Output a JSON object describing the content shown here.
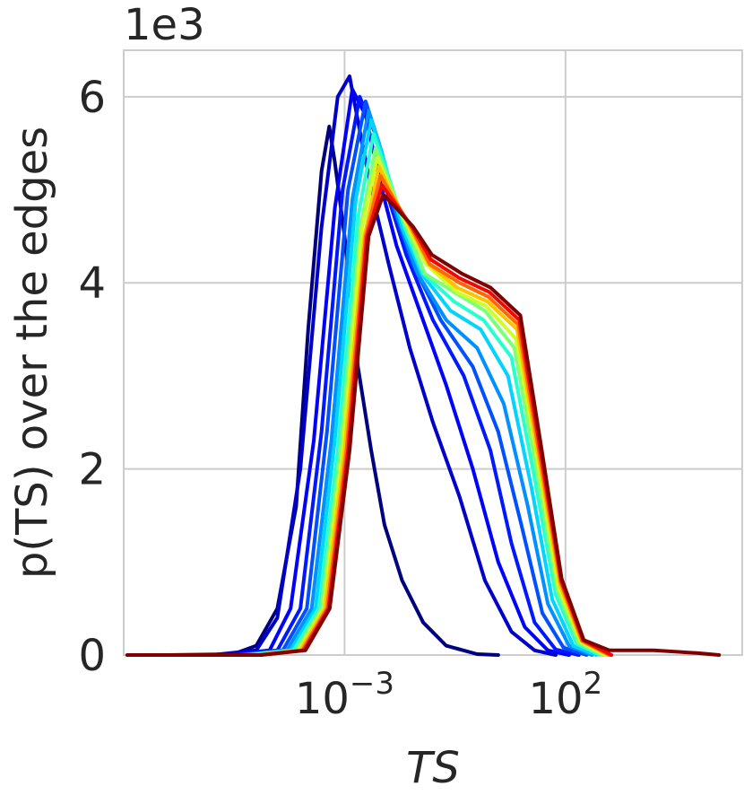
{
  "chart_data": {
    "type": "line",
    "title": "",
    "xlabel": "TS",
    "ylabel": "p(TS) over the edges",
    "y_multiplier_label": "1e3",
    "x_scale": "log",
    "xlim": [
      1e-08,
      1000000.0
    ],
    "ylim": [
      0,
      6.5
    ],
    "x_ticks": [
      {
        "value": 0.001,
        "base": "10",
        "exp": "−3"
      },
      {
        "value": 100,
        "base": "10",
        "exp": "2"
      }
    ],
    "y_ticks": [
      {
        "value": 0,
        "label": "0"
      },
      {
        "value": 2,
        "label": "2"
      },
      {
        "value": 4,
        "label": "4"
      },
      {
        "value": 6,
        "label": "6"
      }
    ],
    "grid": true,
    "legend": "none",
    "colormap": "jet",
    "series": [
      {
        "color": "#00007f",
        "points": [
          [
            1e-07,
            0
          ],
          [
            3e-06,
            0.01
          ],
          [
            1e-05,
            0.1
          ],
          [
            3e-05,
            0.5
          ],
          [
            8e-05,
            1.6
          ],
          [
            0.00015,
            3.5
          ],
          [
            0.0003,
            5.2
          ],
          [
            0.00045,
            5.68
          ],
          [
            0.0006,
            5.3
          ],
          [
            0.001,
            4.5
          ],
          [
            0.002,
            3.1
          ],
          [
            0.004,
            2.2
          ],
          [
            0.008,
            1.4
          ],
          [
            0.02,
            0.8
          ],
          [
            0.06,
            0.35
          ],
          [
            0.2,
            0.1
          ],
          [
            1,
            0.01
          ],
          [
            3,
            0
          ]
        ]
      },
      {
        "color": "#0000c8",
        "points": [
          [
            1e-06,
            0
          ],
          [
            1e-05,
            0.05
          ],
          [
            3e-05,
            0.4
          ],
          [
            0.0001,
            2.0
          ],
          [
            0.0003,
            4.6
          ],
          [
            0.0007,
            6.0
          ],
          [
            0.0013,
            6.22
          ],
          [
            0.0025,
            5.5
          ],
          [
            0.005,
            4.8
          ],
          [
            0.01,
            4.2
          ],
          [
            0.03,
            3.3
          ],
          [
            0.1,
            2.5
          ],
          [
            0.4,
            1.7
          ],
          [
            1.5,
            0.8
          ],
          [
            6,
            0.25
          ],
          [
            20,
            0.05
          ],
          [
            60,
            0
          ]
        ]
      },
      {
        "color": "#0000ff",
        "points": [
          [
            2e-06,
            0
          ],
          [
            2e-05,
            0.05
          ],
          [
            6e-05,
            0.5
          ],
          [
            0.0002,
            2.3
          ],
          [
            0.0006,
            4.8
          ],
          [
            0.0015,
            6.08
          ],
          [
            0.003,
            5.8
          ],
          [
            0.007,
            5.0
          ],
          [
            0.015,
            4.4
          ],
          [
            0.05,
            3.7
          ],
          [
            0.2,
            2.9
          ],
          [
            0.8,
            2.0
          ],
          [
            3,
            1.0
          ],
          [
            12,
            0.3
          ],
          [
            40,
            0.05
          ],
          [
            120,
            0
          ]
        ]
      },
      {
        "color": "#0018ff",
        "points": [
          [
            3e-06,
            0
          ],
          [
            3e-05,
            0.05
          ],
          [
            0.0001,
            0.5
          ],
          [
            0.0003,
            2.4
          ],
          [
            0.0009,
            5.0
          ],
          [
            0.0022,
            6.0
          ],
          [
            0.005,
            5.6
          ],
          [
            0.01,
            4.9
          ],
          [
            0.025,
            4.3
          ],
          [
            0.1,
            3.6
          ],
          [
            0.5,
            3.0
          ],
          [
            2,
            2.2
          ],
          [
            6,
            1.2
          ],
          [
            20,
            0.35
          ],
          [
            60,
            0.06
          ],
          [
            200,
            0
          ]
        ]
      },
      {
        "color": "#0050ff",
        "points": [
          [
            4e-06,
            0
          ],
          [
            4e-05,
            0.05
          ],
          [
            0.00014,
            0.5
          ],
          [
            0.0004,
            2.4
          ],
          [
            0.0012,
            5.0
          ],
          [
            0.003,
            5.95
          ],
          [
            0.006,
            5.5
          ],
          [
            0.013,
            4.8
          ],
          [
            0.035,
            4.2
          ],
          [
            0.15,
            3.6
          ],
          [
            0.8,
            3.1
          ],
          [
            3,
            2.4
          ],
          [
            10,
            1.4
          ],
          [
            30,
            0.45
          ],
          [
            90,
            0.08
          ],
          [
            300,
            0
          ]
        ]
      },
      {
        "color": "#0090ff",
        "points": [
          [
            5e-06,
            0
          ],
          [
            5e-05,
            0.05
          ],
          [
            0.00018,
            0.5
          ],
          [
            0.0005,
            2.3
          ],
          [
            0.0015,
            4.9
          ],
          [
            0.0035,
            5.85
          ],
          [
            0.007,
            5.4
          ],
          [
            0.016,
            4.7
          ],
          [
            0.045,
            4.1
          ],
          [
            0.2,
            3.6
          ],
          [
            1,
            3.3
          ],
          [
            4,
            2.7
          ],
          [
            14,
            1.6
          ],
          [
            40,
            0.55
          ],
          [
            120,
            0.1
          ],
          [
            400,
            0
          ]
        ]
      },
      {
        "color": "#00d4ff",
        "points": [
          [
            6e-06,
            0
          ],
          [
            6e-05,
            0.05
          ],
          [
            0.00022,
            0.5
          ],
          [
            0.0006,
            2.3
          ],
          [
            0.0018,
            4.9
          ],
          [
            0.004,
            5.75
          ],
          [
            0.008,
            5.3
          ],
          [
            0.02,
            4.6
          ],
          [
            0.055,
            4.1
          ],
          [
            0.25,
            3.7
          ],
          [
            1.2,
            3.5
          ],
          [
            5,
            3.0
          ],
          [
            17,
            1.8
          ],
          [
            50,
            0.6
          ],
          [
            150,
            0.1
          ],
          [
            500,
            0
          ]
        ]
      },
      {
        "color": "#29ffce",
        "points": [
          [
            7e-06,
            0
          ],
          [
            7e-05,
            0.05
          ],
          [
            0.00026,
            0.5
          ],
          [
            0.0007,
            2.2
          ],
          [
            0.002,
            4.7
          ],
          [
            0.0045,
            5.6
          ],
          [
            0.009,
            5.2
          ],
          [
            0.023,
            4.6
          ],
          [
            0.06,
            4.1
          ],
          [
            0.3,
            3.8
          ],
          [
            1.4,
            3.6
          ],
          [
            6,
            3.2
          ],
          [
            20,
            1.9
          ],
          [
            60,
            0.65
          ],
          [
            180,
            0.12
          ],
          [
            600,
            0
          ]
        ]
      },
      {
        "color": "#7dff7a",
        "points": [
          [
            8e-06,
            0
          ],
          [
            8e-05,
            0.05
          ],
          [
            0.0003,
            0.5
          ],
          [
            0.0008,
            2.2
          ],
          [
            0.0023,
            4.6
          ],
          [
            0.005,
            5.45
          ],
          [
            0.01,
            5.1
          ],
          [
            0.025,
            4.6
          ],
          [
            0.065,
            4.1
          ],
          [
            0.3,
            3.9
          ],
          [
            1.5,
            3.7
          ],
          [
            7,
            3.3
          ],
          [
            22,
            2.0
          ],
          [
            65,
            0.7
          ],
          [
            200,
            0.13
          ],
          [
            700,
            0
          ]
        ]
      },
      {
        "color": "#ceff29",
        "points": [
          [
            9e-06,
            0
          ],
          [
            9e-05,
            0.05
          ],
          [
            0.00033,
            0.5
          ],
          [
            0.0009,
            2.2
          ],
          [
            0.0025,
            4.6
          ],
          [
            0.0055,
            5.35
          ],
          [
            0.011,
            5.0
          ],
          [
            0.027,
            4.6
          ],
          [
            0.07,
            4.2
          ],
          [
            0.35,
            3.9
          ],
          [
            1.6,
            3.75
          ],
          [
            7.5,
            3.4
          ],
          [
            24,
            2.05
          ],
          [
            70,
            0.72
          ],
          [
            220,
            0.14
          ],
          [
            800,
            0
          ]
        ]
      },
      {
        "color": "#ffc400",
        "points": [
          [
            1e-05,
            0
          ],
          [
            0.0001,
            0.05
          ],
          [
            0.00036,
            0.5
          ],
          [
            0.001,
            2.2
          ],
          [
            0.0028,
            4.5
          ],
          [
            0.006,
            5.25
          ],
          [
            0.012,
            4.95
          ],
          [
            0.03,
            4.6
          ],
          [
            0.08,
            4.2
          ],
          [
            0.35,
            3.95
          ],
          [
            1.7,
            3.8
          ],
          [
            8,
            3.5
          ],
          [
            25,
            2.1
          ],
          [
            75,
            0.75
          ],
          [
            230,
            0.15
          ],
          [
            900,
            0
          ]
        ]
      },
      {
        "color": "#ff6800",
        "points": [
          [
            1.1e-05,
            0
          ],
          [
            0.00011,
            0.05
          ],
          [
            0.0004,
            0.5
          ],
          [
            0.0011,
            2.2
          ],
          [
            0.003,
            4.5
          ],
          [
            0.0065,
            5.15
          ],
          [
            0.013,
            4.9
          ],
          [
            0.032,
            4.6
          ],
          [
            0.085,
            4.2
          ],
          [
            0.4,
            4.0
          ],
          [
            1.8,
            3.85
          ],
          [
            8.5,
            3.55
          ],
          [
            26,
            2.15
          ],
          [
            78,
            0.78
          ],
          [
            240,
            0.15
          ],
          [
            1000,
            0
          ]
        ]
      },
      {
        "color": "#f10800",
        "points": [
          [
            1.2e-05,
            0
          ],
          [
            0.00012,
            0.05
          ],
          [
            0.00043,
            0.5
          ],
          [
            0.0012,
            2.2
          ],
          [
            0.0032,
            4.5
          ],
          [
            0.007,
            5.05
          ],
          [
            0.014,
            4.85
          ],
          [
            0.034,
            4.6
          ],
          [
            0.09,
            4.25
          ],
          [
            0.4,
            4.05
          ],
          [
            1.9,
            3.9
          ],
          [
            9,
            3.6
          ],
          [
            27,
            2.2
          ],
          [
            80,
            0.8
          ],
          [
            250,
            0.16
          ],
          [
            1100,
            0
          ]
        ]
      },
      {
        "color": "#7f0000",
        "points": [
          [
            1.2e-08,
            0
          ],
          [
            1e-06,
            0
          ],
          [
            1.3e-05,
            0
          ],
          [
            0.00013,
            0.05
          ],
          [
            0.00046,
            0.5
          ],
          [
            0.0013,
            2.2
          ],
          [
            0.0035,
            4.5
          ],
          [
            0.0075,
            4.95
          ],
          [
            0.015,
            4.8
          ],
          [
            0.036,
            4.6
          ],
          [
            0.095,
            4.3
          ],
          [
            0.45,
            4.1
          ],
          [
            2,
            3.95
          ],
          [
            9.5,
            3.65
          ],
          [
            28,
            2.25
          ],
          [
            82,
            0.82
          ],
          [
            260,
            0.16
          ],
          [
            1000,
            0.05
          ],
          [
            10000.0,
            0.05
          ],
          [
            100000.0,
            0.02
          ],
          [
            300000.0,
            0
          ]
        ]
      }
    ]
  }
}
